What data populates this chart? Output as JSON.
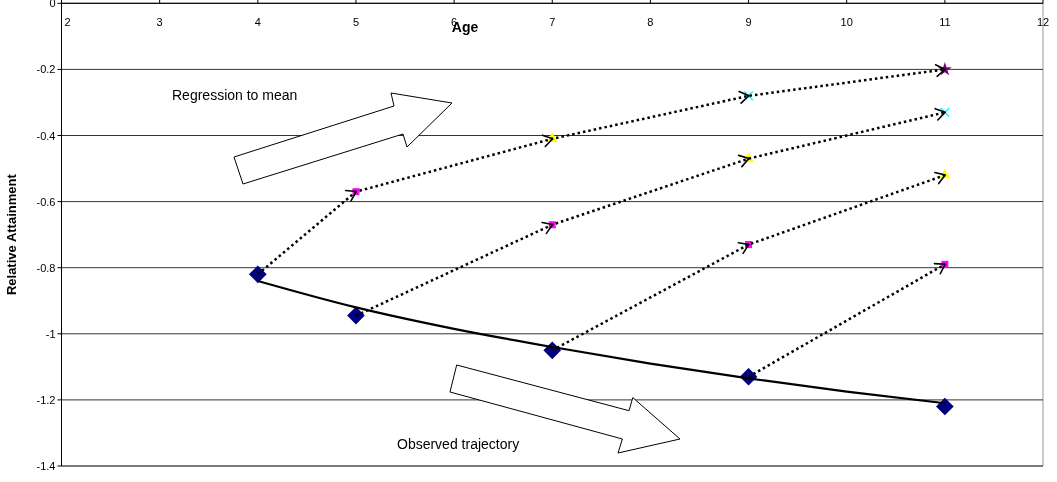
{
  "chart_data": {
    "type": "scatter",
    "xlabel": "Age",
    "ylabel": "Relative Attainment",
    "xlim": [
      2,
      12
    ],
    "xticks": [
      2,
      3,
      4,
      5,
      6,
      7,
      8,
      9,
      10,
      11,
      12
    ],
    "ylim": [
      -1.4,
      0
    ],
    "yticks": [
      -1.4,
      -1.2,
      -1,
      -0.8,
      -0.6,
      -0.4,
      -0.2,
      0
    ],
    "grid": "y",
    "annotations": [
      "Regression to mean",
      "Observed trajectory"
    ],
    "series": [
      {
        "type": "line",
        "color": "#000000",
        "line_style": "solid",
        "x": [
          4,
          5,
          6,
          7,
          8,
          9,
          10,
          11
        ],
        "values": [
          -0.84,
          -0.92,
          -0.985,
          -1.04,
          -1.09,
          -1.135,
          -1.175,
          -1.21
        ]
      },
      {
        "type": "line",
        "color": "#000000",
        "line_style": "dotted",
        "x": [
          4,
          5,
          7,
          9,
          11
        ],
        "values": [
          -0.82,
          -0.57,
          -0.41,
          -0.28,
          -0.2
        ]
      },
      {
        "type": "line",
        "color": "#000000",
        "line_style": "dotted",
        "x": [
          5,
          7,
          9,
          11
        ],
        "values": [
          -0.945,
          -0.67,
          -0.47,
          -0.33
        ]
      },
      {
        "type": "line",
        "color": "#000000",
        "line_style": "dotted",
        "x": [
          7,
          9,
          11
        ],
        "values": [
          -1.05,
          -0.73,
          -0.52
        ]
      },
      {
        "type": "line",
        "color": "#000000",
        "line_style": "dotted",
        "x": [
          9,
          11
        ],
        "values": [
          -1.13,
          -0.79
        ]
      },
      {
        "color": "#000080",
        "marker": "diamond",
        "x": [
          4,
          5,
          7,
          9,
          11
        ],
        "values": [
          -0.82,
          -0.945,
          -1.05,
          -1.13,
          -1.22
        ]
      },
      {
        "color": "#ff00ff",
        "marker": "square",
        "x": [
          5,
          7,
          9,
          11
        ],
        "values": [
          -0.57,
          -0.67,
          -0.73,
          -0.79
        ]
      },
      {
        "color": "#ffff00",
        "marker": "triangle",
        "x": [
          7,
          9,
          11
        ],
        "values": [
          -0.41,
          -0.47,
          -0.52
        ]
      },
      {
        "color": "#00ffff",
        "marker": "cross",
        "x": [
          9,
          11
        ],
        "values": [
          -0.28,
          -0.33
        ]
      },
      {
        "color": "#800080",
        "marker": "star",
        "x": [
          11
        ],
        "values": [
          -0.2
        ]
      }
    ]
  }
}
